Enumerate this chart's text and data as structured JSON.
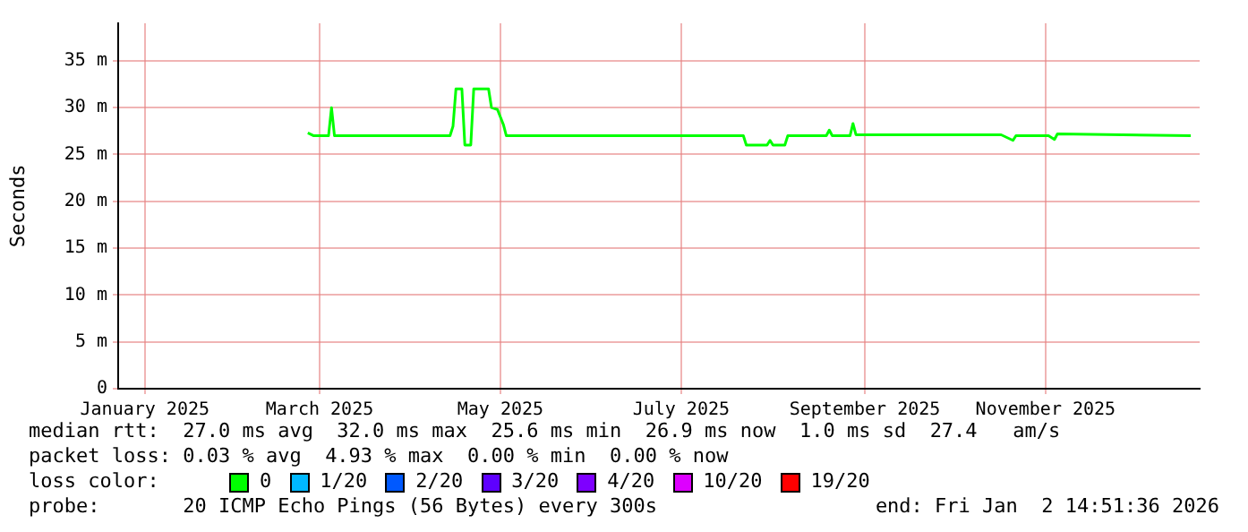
{
  "chart_data": {
    "type": "line",
    "ylabel": "Seconds",
    "legend_title": "loss color:",
    "legend": "bottom",
    "grid": true,
    "marker": "none",
    "line_style": "solid",
    "xlim": [
      "2024-12-23",
      "2025-12-23"
    ],
    "xticks": [
      {
        "value": "2025-01-01",
        "label": "January 2025"
      },
      {
        "value": "2025-03-01",
        "label": "March 2025"
      },
      {
        "value": "2025-05-01",
        "label": "May 2025"
      },
      {
        "value": "2025-07-01",
        "label": "July 2025"
      },
      {
        "value": "2025-09-01",
        "label": "September 2025"
      },
      {
        "value": "2025-11-01",
        "label": "November 2025"
      }
    ],
    "ylim": [
      0,
      39
    ],
    "yticks": [
      0,
      {
        "value": 5,
        "label": "5 m"
      },
      {
        "value": 10,
        "label": "10 m"
      },
      {
        "value": 15,
        "label": "15 m"
      },
      {
        "value": 20,
        "label": "20 m"
      },
      {
        "value": 25,
        "label": "25 m"
      },
      {
        "value": 30,
        "label": "30 m"
      },
      {
        "value": 35,
        "label": "35 m"
      }
    ],
    "x": [
      "2025-02-25",
      "2025-02-27",
      "2025-03-04",
      "2025-03-05",
      "2025-03-06",
      "2025-04-14",
      "2025-04-15",
      "2025-04-16",
      "2025-04-18",
      "2025-04-19",
      "2025-04-21",
      "2025-04-22",
      "2025-04-27",
      "2025-04-28",
      "2025-04-30",
      "2025-05-02",
      "2025-05-03",
      "2025-07-22",
      "2025-07-23",
      "2025-07-30",
      "2025-07-31",
      "2025-08-01",
      "2025-08-05",
      "2025-08-06",
      "2025-08-19",
      "2025-08-20",
      "2025-08-21",
      "2025-08-27",
      "2025-08-28",
      "2025-08-29",
      "2025-10-17",
      "2025-10-21",
      "2025-10-22",
      "2025-11-02",
      "2025-11-04",
      "2025-11-05",
      "2025-12-20"
    ],
    "series": [
      {
        "name": "0",
        "color": "#00ff00",
        "values": [
          27.3,
          27.0,
          27.0,
          30.0,
          27.0,
          27.0,
          28.0,
          32.0,
          32.0,
          26.0,
          26.0,
          32.0,
          32.0,
          30.0,
          29.8,
          28.2,
          27.0,
          27.0,
          26.0,
          26.0,
          26.5,
          26.0,
          26.0,
          27.0,
          27.0,
          27.6,
          27.0,
          27.0,
          28.3,
          27.1,
          27.1,
          26.5,
          27.0,
          27.0,
          26.6,
          27.2,
          27.0
        ]
      },
      {
        "name": "1/20",
        "color": "#00b8ff",
        "values": [
          null,
          null,
          null,
          null,
          null,
          null,
          null,
          null,
          null,
          null,
          null,
          null,
          null,
          null,
          null,
          null,
          null,
          null,
          null,
          null,
          null,
          null,
          null,
          null,
          null,
          null,
          null,
          null,
          null,
          null,
          null,
          null,
          null,
          null,
          null,
          null,
          null
        ]
      },
      {
        "name": "2/20",
        "color": "#0059ff",
        "values": [
          null,
          null,
          null,
          null,
          null,
          null,
          null,
          null,
          null,
          null,
          null,
          null,
          null,
          null,
          null,
          null,
          null,
          null,
          null,
          null,
          null,
          null,
          null,
          null,
          null,
          null,
          null,
          null,
          null,
          null,
          null,
          null,
          null,
          null,
          null,
          null,
          null
        ]
      },
      {
        "name": "3/20",
        "color": "#5e00ff",
        "values": [
          null,
          null,
          null,
          null,
          null,
          null,
          null,
          null,
          null,
          null,
          null,
          null,
          null,
          null,
          null,
          null,
          null,
          null,
          null,
          null,
          null,
          null,
          null,
          null,
          null,
          null,
          null,
          null,
          null,
          null,
          null,
          null,
          null,
          null,
          null,
          null,
          null
        ]
      },
      {
        "name": "4/20",
        "color": "#7e00ff",
        "values": [
          null,
          null,
          null,
          null,
          null,
          null,
          null,
          null,
          null,
          null,
          null,
          null,
          null,
          null,
          null,
          null,
          null,
          null,
          null,
          null,
          null,
          null,
          null,
          null,
          null,
          null,
          null,
          null,
          null,
          null,
          null,
          null,
          null,
          null,
          null,
          null,
          null
        ]
      },
      {
        "name": "10/20",
        "color": "#dd00ff",
        "values": [
          null,
          null,
          null,
          null,
          null,
          null,
          null,
          null,
          null,
          null,
          null,
          null,
          null,
          null,
          null,
          null,
          null,
          null,
          null,
          null,
          null,
          null,
          null,
          null,
          null,
          null,
          null,
          null,
          null,
          null,
          null,
          null,
          null,
          null,
          null,
          null,
          null
        ]
      },
      {
        "name": "19/20",
        "color": "#ff0000",
        "values": [
          null,
          null,
          null,
          null,
          null,
          null,
          null,
          null,
          null,
          null,
          null,
          null,
          null,
          null,
          null,
          null,
          null,
          null,
          null,
          null,
          null,
          null,
          null,
          null,
          null,
          null,
          null,
          null,
          null,
          null,
          null,
          null,
          null,
          null,
          null,
          null,
          null
        ]
      }
    ],
    "annotations": [
      "median rtt:  27.0 ms avg  32.0 ms max  25.6 ms min  26.9 ms now  1.0 ms sd  27.4   am/s",
      "packet loss: 0.03 % avg  4.93 % max  0.00 % min  0.00 % now",
      "probe:       20 ICMP Echo Pings (56 Bytes) every 300s",
      "end: Fri Jan  2 14:51:36 2026"
    ]
  }
}
